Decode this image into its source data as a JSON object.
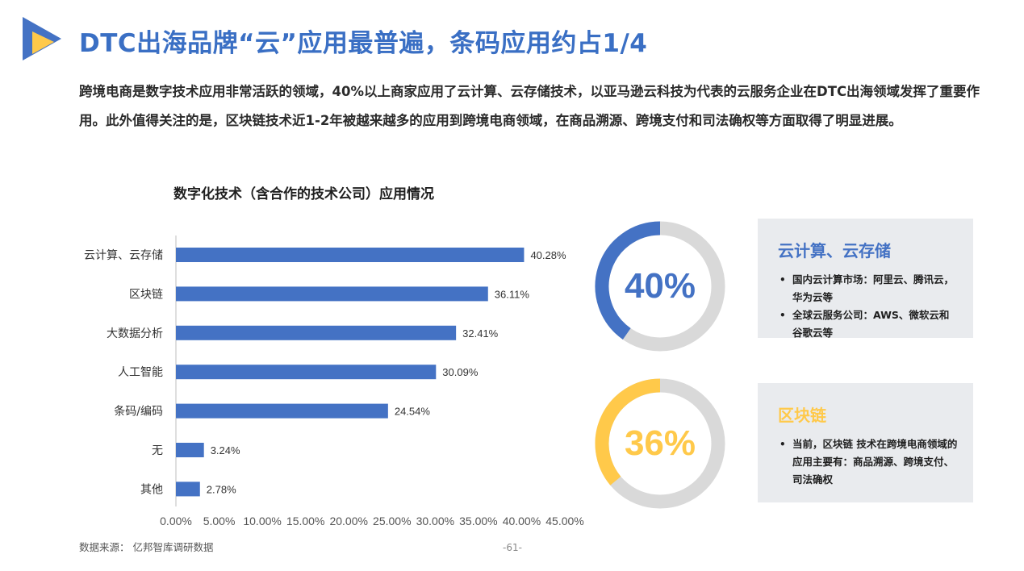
{
  "page": {
    "title": "DTC出海品牌“云”应用最普遍，条码应用约占1/4",
    "intro": "跨境电商是数字技术应用非常活跃的领域，40%以上商家应用了云计算、云存储技术，以亚马逊云科技为代表的云服务企业在DTC出海领域发挥了重要作用。此外值得关注的是，区块链技术近1-2年被越来越多的应用到跨境电商领域，在商品溯源、跨境支付和司法确权等方面取得了明显进展。",
    "source": "数据来源： 亿邦智库调研数据",
    "page_number": "-61-",
    "logo_icon": "play-triangle-logo-icon"
  },
  "colors": {
    "title_blue": "#3a6fc4",
    "bar": "#4472c4",
    "donut_track": "#d9d9d9",
    "blue": "#4472c4",
    "yellow": "#ffc94a"
  },
  "chart_data": {
    "type": "bar",
    "orientation": "horizontal",
    "title": "数字化技术（含合作的技术公司）应用情况",
    "categories": [
      "云计算、云存储",
      "区块链",
      "大数据分析",
      "人工智能",
      "条码/编码",
      "无",
      "其他"
    ],
    "values": [
      40.28,
      36.11,
      32.41,
      30.09,
      24.54,
      3.24,
      2.78
    ],
    "value_labels": [
      "40.28%",
      "36.11%",
      "32.41%",
      "30.09%",
      "24.54%",
      "3.24%",
      "2.78%"
    ],
    "xticks": [
      "0.00%",
      "5.00%",
      "10.00%",
      "15.00%",
      "20.00%",
      "25.00%",
      "30.00%",
      "35.00%",
      "40.00%",
      "45.00%"
    ],
    "xlim": [
      0,
      45
    ],
    "grid": false,
    "legend": "none"
  },
  "highlights": [
    {
      "percent_text": "40%",
      "value": 40.28,
      "color": "#4472c4",
      "title": "云计算、云存储",
      "bullets": [
        "国内云计算市场：阿里云、腾讯云，华为云等",
        "全球云服务公司：AWS、微软云和谷歌云等"
      ]
    },
    {
      "percent_text": "36%",
      "value": 36.11,
      "color": "#ffc94a",
      "title": "区块链",
      "bullets": [
        "当前，区块链 技术在跨境电商领域的应用主要有：商品溯源、跨境支付、司法确权"
      ]
    }
  ]
}
